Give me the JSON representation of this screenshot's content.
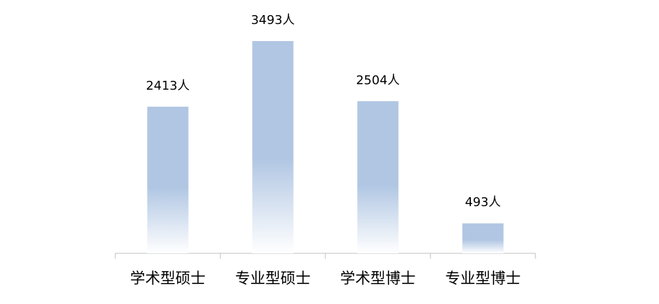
{
  "chart_data": {
    "type": "bar",
    "categories": [
      "学术型硕士",
      "专业型硕士",
      "学术型博士",
      "专业型博士"
    ],
    "values": [
      2413,
      3493,
      2504,
      493
    ],
    "value_labels": [
      "2413人",
      "3493人",
      "2504人",
      "493人"
    ],
    "color": "#b0c6e3"
  }
}
